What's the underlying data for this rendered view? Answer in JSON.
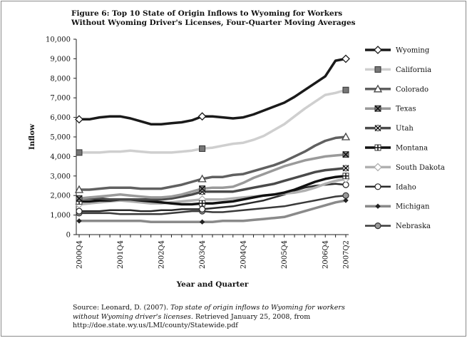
{
  "figure": {
    "title": "Figure 6: Top 10 State of Origin Inflows to Wyoming for Workers Without Wyoming Driver's Licenses, Four-Quarter Moving Averages",
    "source_prefix": "Source: Leonard, D. (2007). ",
    "source_italic": "Top state of origin inflows to Wyoming for workers without Wyoming driver's licenses.",
    "source_suffix": " Retrieved January 25, 2008, from http://doe.state.wy.us/LMI/county/Statewide.pdf"
  },
  "chart_data": {
    "type": "line",
    "xlabel": "Year and Quarter",
    "ylabel": "Inflow",
    "ylim": [
      0,
      10000
    ],
    "yticks": [
      0,
      1000,
      2000,
      3000,
      4000,
      5000,
      6000,
      7000,
      8000,
      9000,
      10000
    ],
    "ytick_labels": [
      "0",
      "1,000",
      "2,000",
      "3,000",
      "4,000",
      "5,000",
      "6,000",
      "7,000",
      "8,000",
      "9,000",
      "10,000"
    ],
    "x": [
      "2000Q4",
      "2001Q1",
      "2001Q2",
      "2001Q3",
      "2001Q4",
      "2002Q1",
      "2002Q2",
      "2002Q3",
      "2002Q4",
      "2003Q1",
      "2003Q2",
      "2003Q3",
      "2003Q4",
      "2004Q1",
      "2004Q2",
      "2004Q3",
      "2004Q4",
      "2005Q1",
      "2005Q2",
      "2005Q3",
      "2005Q4",
      "2006Q1",
      "2006Q2",
      "2006Q3",
      "2006Q4",
      "2007Q1",
      "2007Q2"
    ],
    "xtick_labels": [
      "2000Q4",
      "2001Q4",
      "2002Q4",
      "2003Q4",
      "2004Q4",
      "2005Q4",
      "2006Q4",
      "2007Q2"
    ],
    "grid": false,
    "legend_position": "right",
    "series": [
      {
        "name": "Wyoming",
        "color": "#1a1a1a",
        "marker": "diamond",
        "width": 3.5,
        "values": [
          5900,
          5900,
          6000,
          6050,
          6050,
          5950,
          5800,
          5650,
          5650,
          5700,
          5750,
          5850,
          6050,
          6050,
          6000,
          5950,
          6000,
          6150,
          6350,
          6550,
          6750,
          7050,
          7400,
          7750,
          8100,
          8900,
          9000
        ]
      },
      {
        "name": "California",
        "color": "#cfcfcf",
        "marker": "square",
        "width": 3.5,
        "values": [
          4200,
          4200,
          4200,
          4250,
          4250,
          4300,
          4250,
          4200,
          4200,
          4200,
          4250,
          4300,
          4400,
          4450,
          4550,
          4650,
          4700,
          4850,
          5050,
          5350,
          5650,
          6050,
          6450,
          6800,
          7150,
          7250,
          7400
        ]
      },
      {
        "name": "Colorado",
        "color": "#606060",
        "marker": "triangle",
        "width": 3.5,
        "values": [
          2300,
          2300,
          2350,
          2400,
          2400,
          2400,
          2350,
          2350,
          2350,
          2450,
          2550,
          2700,
          2850,
          2950,
          2950,
          3050,
          3100,
          3250,
          3400,
          3550,
          3750,
          4000,
          4250,
          4550,
          4800,
          4950,
          5000
        ]
      },
      {
        "name": "Texas",
        "color": "#9a9a9a",
        "marker": "x-square",
        "width": 3.5,
        "values": [
          1850,
          1900,
          1950,
          2000,
          2050,
          2000,
          1950,
          1900,
          1900,
          1950,
          2050,
          2200,
          2350,
          2400,
          2400,
          2450,
          2650,
          2900,
          3100,
          3300,
          3500,
          3650,
          3800,
          3900,
          4000,
          4050,
          4100
        ]
      },
      {
        "name": "Utah",
        "color": "#4a4a4a",
        "marker": "x-circle",
        "width": 3.5,
        "values": [
          1850,
          1850,
          1850,
          1800,
          1800,
          1800,
          1800,
          1800,
          1800,
          1850,
          1950,
          2050,
          2200,
          2200,
          2200,
          2200,
          2300,
          2400,
          2500,
          2600,
          2750,
          2900,
          3050,
          3200,
          3300,
          3350,
          3400
        ]
      },
      {
        "name": "Montana",
        "color": "#111111",
        "marker": "plus-square",
        "width": 3.5,
        "values": [
          1700,
          1700,
          1750,
          1750,
          1800,
          1800,
          1750,
          1700,
          1650,
          1600,
          1550,
          1550,
          1600,
          1600,
          1650,
          1700,
          1800,
          1900,
          2000,
          2050,
          2150,
          2300,
          2500,
          2700,
          2850,
          2950,
          3000
        ]
      },
      {
        "name": "South Dakota",
        "color": "#b0b0b0",
        "marker": "diamond",
        "width": 3.5,
        "values": [
          1550,
          1600,
          1650,
          1700,
          1750,
          1700,
          1650,
          1600,
          1600,
          1650,
          1700,
          1750,
          1800,
          1800,
          1800,
          1850,
          1900,
          1950,
          2000,
          2050,
          2100,
          2150,
          2250,
          2400,
          2600,
          2750,
          2850
        ]
      },
      {
        "name": "Idaho",
        "color": "#2a2a2a",
        "marker": "circle",
        "width": 2.5,
        "values": [
          1200,
          1200,
          1200,
          1250,
          1250,
          1250,
          1200,
          1200,
          1250,
          1250,
          1300,
          1300,
          1300,
          1350,
          1400,
          1450,
          1550,
          1650,
          1750,
          1900,
          2050,
          2250,
          2400,
          2500,
          2550,
          2600,
          2550
        ]
      },
      {
        "name": "Michigan",
        "color": "#8a8a8a",
        "marker": "diamond-small",
        "width": 3.5,
        "values": [
          700,
          700,
          700,
          700,
          700,
          700,
          700,
          650,
          650,
          650,
          650,
          650,
          650,
          650,
          700,
          700,
          700,
          750,
          800,
          850,
          900,
          1050,
          1200,
          1350,
          1500,
          1650,
          1750
        ]
      },
      {
        "name": "Nebraska",
        "color": "#3a3a3a",
        "marker": "circle-gray",
        "width": 2.5,
        "values": [
          1100,
          1100,
          1100,
          1100,
          1050,
          1050,
          1050,
          1050,
          1050,
          1100,
          1150,
          1200,
          1200,
          1150,
          1150,
          1200,
          1250,
          1300,
          1350,
          1400,
          1450,
          1550,
          1650,
          1750,
          1850,
          1950,
          2000
        ]
      }
    ]
  }
}
